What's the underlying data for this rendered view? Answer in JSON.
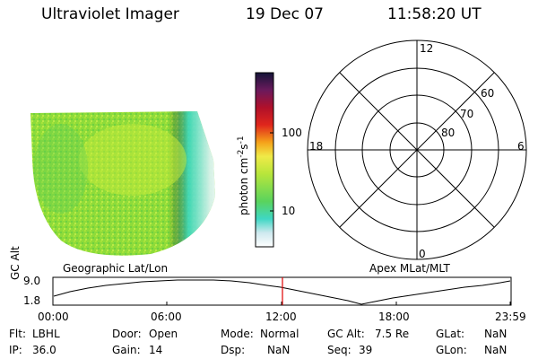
{
  "header": {
    "title": "Ultraviolet Imager",
    "date": "19 Dec 07",
    "time": "11:58:20 UT"
  },
  "image_panel": {
    "geo_label": "Geographic Lat/Lon"
  },
  "colorbar": {
    "title": "photon cm",
    "title_sup1": "-2",
    "title_mid": "s",
    "title_sup2": "-1",
    "ticks": [
      "100",
      "10"
    ]
  },
  "polar_plot": {
    "apex_label": "Apex MLat/MLT",
    "mlt_labels": [
      "12",
      "18",
      "6",
      "0"
    ],
    "lat_labels": [
      "60",
      "70",
      "80"
    ]
  },
  "altitude_plot": {
    "ylabel": "GC Alt",
    "y_ticks": [
      "9.0",
      "1.8"
    ],
    "x_ticks": [
      "00:00",
      "06:00",
      "12:00",
      "18:00",
      "23:59"
    ]
  },
  "status": {
    "flt_label": "Flt:",
    "flt_value": "LBHL",
    "ip_label": "IP:",
    "ip_value": "36.0",
    "door_label": "Door:",
    "door_value": "Open",
    "gain_label": "Gain:",
    "gain_value": "14",
    "mode_label": "Mode:",
    "mode_value": "Normal",
    "dsp_label": "Dsp:",
    "dsp_value": "NaN",
    "gcalt_label": "GC Alt:",
    "gcalt_value": "7.5 Re",
    "seq_label": "Seq:",
    "seq_value": "39",
    "glat_label": "GLat:",
    "glat_value": "NaN",
    "glon_label": "GLon:",
    "glon_value": "NaN"
  },
  "colors": {
    "cursor": "#e00000"
  }
}
